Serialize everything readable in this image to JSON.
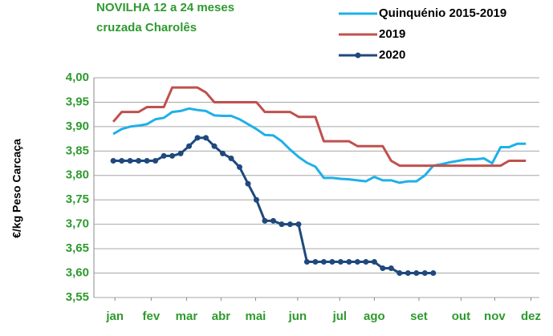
{
  "chart_data": {
    "type": "line",
    "title": "NOVILHA 12 a 24 meses",
    "subtitle": "cruzada Charolês",
    "y_label": "€/kg Peso Carcaça",
    "x": [
      1,
      2,
      3,
      4,
      5,
      6,
      7,
      8,
      9,
      10,
      11,
      12,
      13,
      14,
      15,
      16,
      17,
      18,
      19,
      20,
      21,
      22,
      23,
      24,
      25,
      26,
      27,
      28,
      29,
      30,
      31,
      32,
      33,
      34,
      35,
      36,
      37,
      38,
      39,
      40,
      41,
      42,
      43,
      44,
      45,
      46,
      47,
      48,
      49,
      50
    ],
    "xlim": [
      -1.3,
      51.6
    ],
    "xticks": [
      {
        "value": 1.2,
        "label": "jan"
      },
      {
        "value": 5.5,
        "label": "fev"
      },
      {
        "value": 9.7,
        "label": "mar"
      },
      {
        "value": 13.8,
        "label": "abr"
      },
      {
        "value": 17.9,
        "label": "mai"
      },
      {
        "value": 22.9,
        "label": "jun"
      },
      {
        "value": 27.9,
        "label": "jul"
      },
      {
        "value": 32,
        "label": "ago"
      },
      {
        "value": 37.3,
        "label": "set"
      },
      {
        "value": 42.3,
        "label": "out"
      },
      {
        "value": 46.3,
        "label": "nov"
      },
      {
        "value": 50.6,
        "label": "dez"
      }
    ],
    "ylim": [
      3.55,
      4.0
    ],
    "yticks": [
      {
        "value": 3.55,
        "label": "3,55"
      },
      {
        "value": 3.6,
        "label": "3,60"
      },
      {
        "value": 3.65,
        "label": "3,65"
      },
      {
        "value": 3.7,
        "label": "3,70"
      },
      {
        "value": 3.75,
        "label": "3,75"
      },
      {
        "value": 3.8,
        "label": "3,80"
      },
      {
        "value": 3.85,
        "label": "3,85"
      },
      {
        "value": 3.9,
        "label": "3,90"
      },
      {
        "value": 3.95,
        "label": "3,95"
      },
      {
        "value": 4.0,
        "label": "4,00"
      }
    ],
    "grid": true,
    "legend": "top-right",
    "series": [
      {
        "name": "Quinquénio 2015-2019",
        "color": "#1fb0e8",
        "values": [
          3.885,
          3.895,
          3.9,
          3.902,
          3.905,
          3.915,
          3.918,
          3.93,
          3.932,
          3.937,
          3.934,
          3.932,
          3.923,
          3.922,
          3.922,
          3.915,
          3.905,
          3.895,
          3.883,
          3.882,
          3.87,
          3.853,
          3.838,
          3.826,
          3.818,
          3.795,
          3.795,
          3.793,
          3.792,
          3.79,
          3.788,
          3.797,
          3.79,
          3.79,
          3.785,
          3.788,
          3.788,
          3.8,
          3.82,
          3.823,
          3.827,
          3.83,
          3.833,
          3.833,
          3.835,
          3.825,
          3.858,
          3.858,
          3.865,
          3.865
        ]
      },
      {
        "name": "2019",
        "color": "#c0504d",
        "values": [
          3.91,
          3.93,
          3.93,
          3.93,
          3.94,
          3.94,
          3.94,
          3.98,
          3.98,
          3.98,
          3.98,
          3.97,
          3.95,
          3.95,
          3.95,
          3.95,
          3.95,
          3.95,
          3.93,
          3.93,
          3.93,
          3.93,
          3.92,
          3.92,
          3.92,
          3.87,
          3.87,
          3.87,
          3.87,
          3.86,
          3.86,
          3.86,
          3.86,
          3.83,
          3.82,
          3.82,
          3.82,
          3.82,
          3.82,
          3.82,
          3.82,
          3.82,
          3.82,
          3.82,
          3.82,
          3.82,
          3.82,
          3.83,
          3.83,
          3.83
        ]
      },
      {
        "name": "2020",
        "color": "#1f497d",
        "marker": "circle",
        "values": [
          3.83,
          3.83,
          3.83,
          3.83,
          3.83,
          3.83,
          3.84,
          3.84,
          3.845,
          3.86,
          3.877,
          3.877,
          3.86,
          3.845,
          3.835,
          3.817,
          3.783,
          3.75,
          3.707,
          3.707,
          3.7,
          3.7,
          3.7,
          3.623,
          3.623,
          3.623,
          3.623,
          3.623,
          3.623,
          3.623,
          3.623,
          3.623,
          3.61,
          3.61,
          3.6,
          3.6,
          3.6,
          3.6,
          3.6,
          null,
          null,
          null,
          null,
          null,
          null,
          null,
          null,
          null,
          null,
          null
        ]
      }
    ]
  }
}
